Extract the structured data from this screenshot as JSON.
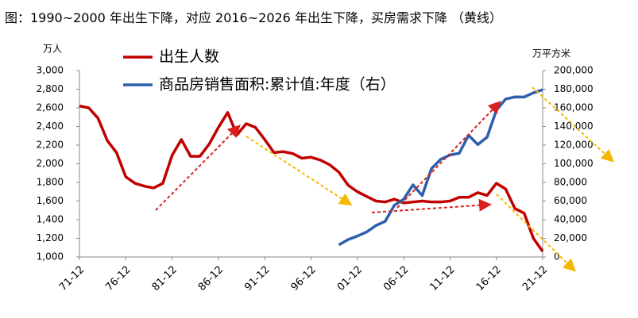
{
  "chart_data": {
    "type": "line",
    "title": "图：1990~2000 年出生下降，对应 2016~2026 年出生下降，买房需求下降 （黄线）",
    "ylabel": "万人",
    "y2label": "万平方米",
    "categories": [
      "71-12",
      null,
      null,
      null,
      null,
      "76-12",
      null,
      null,
      null,
      null,
      "81-12",
      null,
      null,
      null,
      null,
      "86-12",
      null,
      null,
      null,
      null,
      "91-12",
      null,
      null,
      null,
      null,
      "96-12",
      null,
      null,
      null,
      null,
      "01-12",
      null,
      null,
      null,
      null,
      "06-12",
      null,
      null,
      null,
      null,
      "11-12",
      null,
      null,
      null,
      null,
      "16-12",
      null,
      null,
      null,
      null,
      "21-12"
    ],
    "series": [
      {
        "name": "出生人数",
        "color": "#c00000",
        "axis": "y",
        "values": [
          2620,
          2600,
          2490,
          2250,
          2120,
          1860,
          1790,
          1760,
          1740,
          1790,
          2090,
          2260,
          2080,
          2080,
          2210,
          2390,
          2550,
          2310,
          2430,
          2390,
          2260,
          2120,
          2130,
          2110,
          2060,
          2070,
          2040,
          1990,
          1910,
          1770,
          1700,
          1650,
          1600,
          1590,
          1620,
          1580,
          1590,
          1600,
          1590,
          1590,
          1600,
          1640,
          1640,
          1690,
          1660,
          1790,
          1730,
          1520,
          1470,
          1200,
          1060
        ]
      },
      {
        "name": "商品房销售面积:累计值:年度（右）",
        "color": "#2e5fab",
        "axis": "y2",
        "values": [
          null,
          null,
          null,
          null,
          null,
          null,
          null,
          null,
          null,
          null,
          null,
          null,
          null,
          null,
          null,
          null,
          null,
          null,
          null,
          null,
          null,
          null,
          null,
          null,
          null,
          null,
          null,
          null,
          13000,
          18600,
          22400,
          26800,
          33700,
          38200,
          55500,
          61900,
          77400,
          65900,
          94800,
          104800,
          109400,
          111300,
          130600,
          120600,
          128500,
          157300,
          169400,
          171700,
          171600,
          176100,
          179400
        ]
      }
    ],
    "ylim": [
      1000,
      3000
    ],
    "yticks": [
      {
        "value": 1000,
        "label": "1,000"
      },
      {
        "value": 1200,
        "label": "1,200"
      },
      {
        "value": 1400,
        "label": "1,400"
      },
      {
        "value": 1600,
        "label": "1,600"
      },
      {
        "value": 1800,
        "label": "1,800"
      },
      {
        "value": 2000,
        "label": "2,000"
      },
      {
        "value": 2200,
        "label": "2,200"
      },
      {
        "value": 2400,
        "label": "2,400"
      },
      {
        "value": 2600,
        "label": "2,600"
      },
      {
        "value": 2800,
        "label": "2,800"
      },
      {
        "value": 3000,
        "label": "3,000"
      }
    ],
    "y2lim": [
      0,
      200000
    ],
    "y2ticks": [
      0,
      {
        "value": 20000,
        "label": "20,000"
      },
      {
        "value": 40000,
        "label": "40,000"
      },
      {
        "value": 60000,
        "label": "60,000"
      },
      {
        "value": 80000,
        "label": "80,000"
      },
      {
        "value": 100000,
        "label": "100,000"
      },
      {
        "value": 120000,
        "label": "120,000"
      },
      {
        "value": 140000,
        "label": "140,000"
      },
      {
        "value": 160000,
        "label": "160,000"
      },
      {
        "value": 180000,
        "label": "180,000"
      },
      {
        "value": 200000,
        "label": "200,000"
      }
    ],
    "grid": false
  }
}
